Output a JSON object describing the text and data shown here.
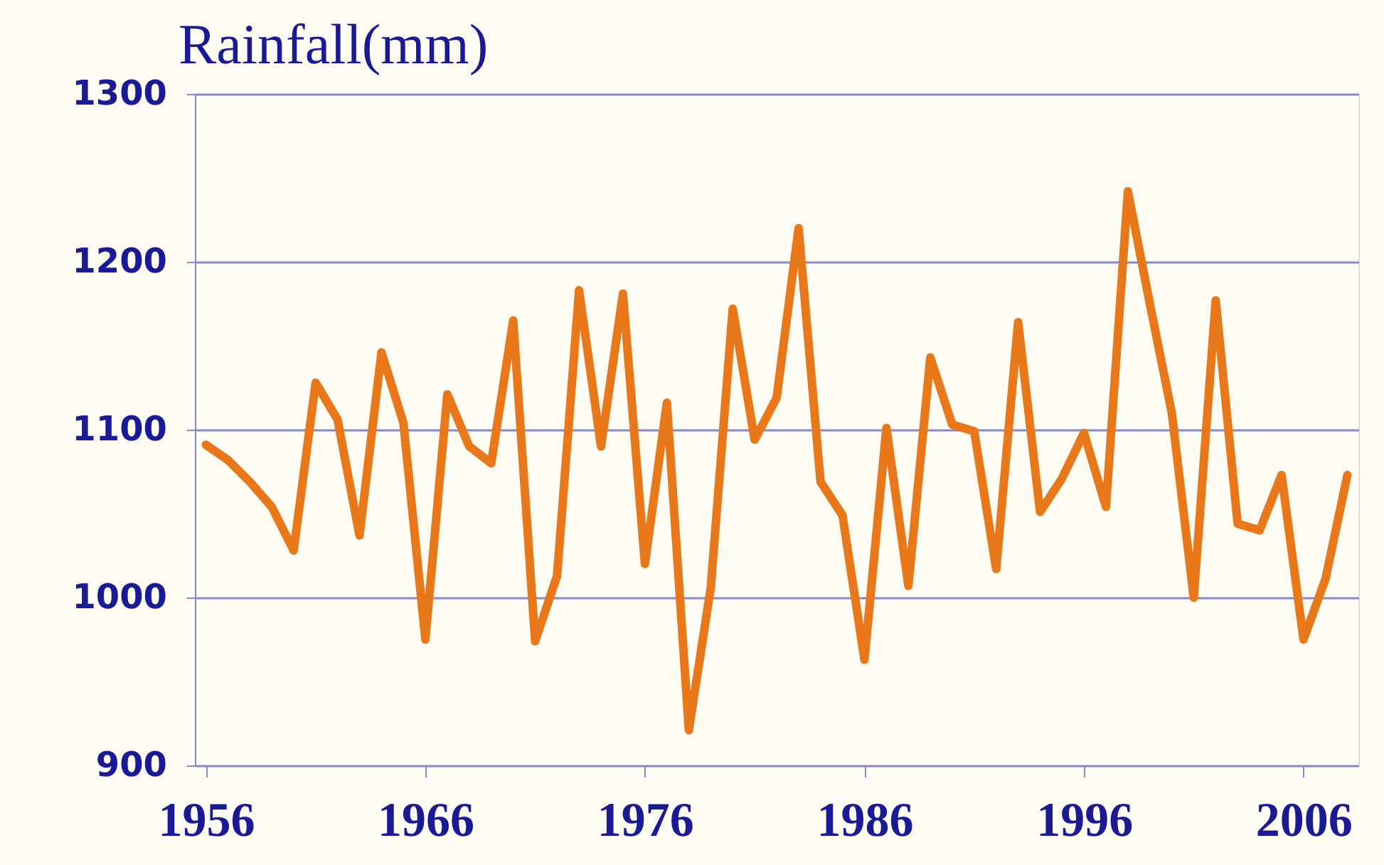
{
  "chart_data": {
    "type": "line",
    "ylabel": "Rainfall(mm)",
    "x": [
      1956,
      1957,
      1958,
      1959,
      1960,
      1961,
      1962,
      1963,
      1964,
      1965,
      1966,
      1967,
      1968,
      1969,
      1970,
      1971,
      1972,
      1973,
      1974,
      1975,
      1976,
      1977,
      1978,
      1979,
      1980,
      1981,
      1982,
      1983,
      1984,
      1985,
      1986,
      1987,
      1988,
      1989,
      1990,
      1991,
      1992,
      1993,
      1994,
      1995,
      1996,
      1997,
      1998,
      1999,
      2000,
      2001,
      2002,
      2003,
      2004,
      2005,
      2006,
      2007,
      2008
    ],
    "series": [
      {
        "color": "#e8781a",
        "values": [
          1091,
          1082,
          1069,
          1054,
          1028,
          1128,
          1106,
          1037,
          1146,
          1104,
          975,
          1121,
          1090,
          1080,
          1165,
          974,
          1013,
          1183,
          1090,
          1181,
          1020,
          1116,
          921,
          1006,
          1172,
          1094,
          1119,
          1220,
          1069,
          1049,
          963,
          1101,
          1007,
          1143,
          1103,
          1099,
          1017,
          1164,
          1051,
          1071,
          1098,
          1054,
          1242,
          1175,
          1110,
          1000,
          1177,
          1044,
          1040,
          1073,
          975,
          1011,
          1073
        ]
      }
    ],
    "xlim": [
      1955.5,
      2008.5
    ],
    "xticks": [
      1956,
      1966,
      1976,
      1986,
      1996,
      2006
    ],
    "ylim": [
      900,
      1300
    ],
    "yticks": [
      900,
      1000,
      1100,
      1200,
      1300
    ],
    "grid": "y",
    "legend": false,
    "marker": "none",
    "line_style": "solid"
  }
}
